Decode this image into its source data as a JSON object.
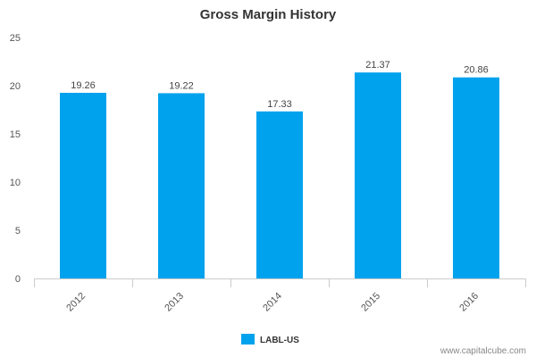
{
  "chart_data": {
    "type": "bar",
    "title": "Gross Margin History",
    "categories": [
      "2012",
      "2013",
      "2014",
      "2015",
      "2016"
    ],
    "series": [
      {
        "name": "LABL-US",
        "values": [
          19.26,
          19.22,
          17.33,
          21.37,
          20.86
        ],
        "color": "#00a2ed"
      }
    ],
    "data_labels": [
      "19.26",
      "19.22",
      "17.33",
      "21.37",
      "20.86"
    ],
    "y_ticks": [
      "0",
      "5",
      "10",
      "15",
      "20",
      "25"
    ],
    "ylim": [
      0,
      25
    ],
    "xlabel": "",
    "ylabel": "",
    "grid": false,
    "legend_position": "bottom-center",
    "axis_color": "#cccccc"
  },
  "watermark": "www.capitalcube.com"
}
